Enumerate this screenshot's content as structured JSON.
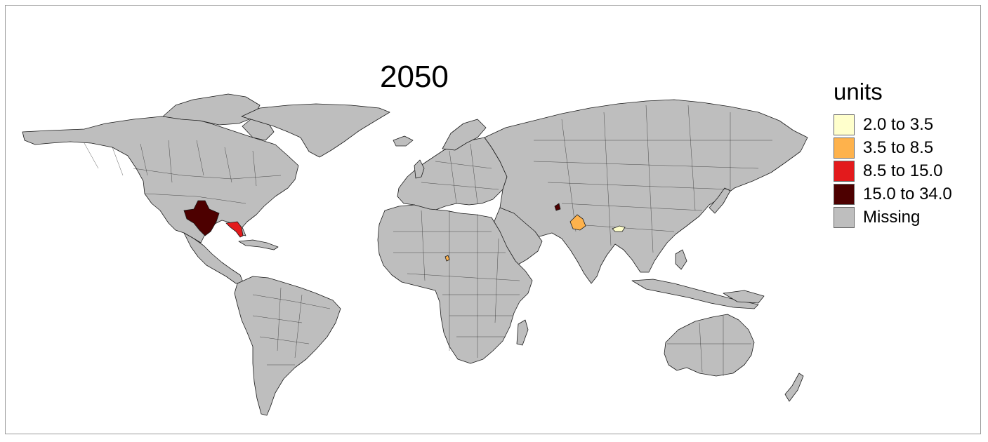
{
  "map": {
    "title": "2050",
    "missing_color": "#bebebe",
    "border_color": "#1a1a1a"
  },
  "legend": {
    "title": "units",
    "items": [
      {
        "label": "2.0 to 3.5",
        "color": "#ffffcc"
      },
      {
        "label": "3.5 to 8.5",
        "color": "#feb24c"
      },
      {
        "label": "8.5 to 15.0",
        "color": "#e31a1c"
      },
      {
        "label": "15.0 to 34.0",
        "color": "#4d0000"
      },
      {
        "label": "Missing",
        "color": "#bebebe"
      }
    ]
  },
  "highlighted_regions": [
    {
      "name": "Texas",
      "class": "15.0 to 34.0"
    },
    {
      "name": "Florida",
      "class": "8.5 to 15.0"
    },
    {
      "name": "Northern India region",
      "class": "3.5 to 8.5"
    },
    {
      "name": "Northeast India region",
      "class": "2.0 to 3.5"
    },
    {
      "name": "Central Asia region",
      "class": "15.0 to 34.0"
    },
    {
      "name": "Central Africa region",
      "class": "3.5 to 8.5"
    }
  ]
}
